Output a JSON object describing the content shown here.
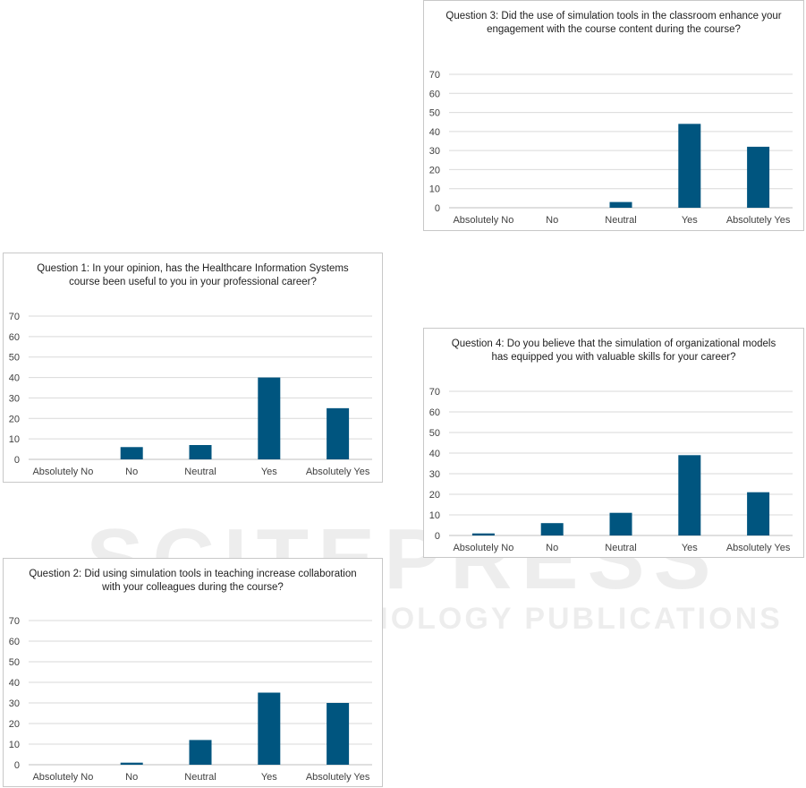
{
  "watermark": {
    "line1": "SCITEPRESS",
    "line2": "SCIENCE AND TECHNOLOGY PUBLICATIONS"
  },
  "colors": {
    "bar": "#00557f",
    "grid": "#d9d9d9",
    "axis": "#bfbfbf",
    "text": "#404040"
  },
  "chart_data": [
    {
      "type": "bar",
      "title": "Question 1: In your opinion, has the Healthcare Information Systems course been useful to you in your professional career?",
      "categories": [
        "Absolutely No",
        "No",
        "Neutral",
        "Yes",
        "Absolutely Yes"
      ],
      "values": [
        0,
        6,
        7,
        40,
        25
      ],
      "xlabel": "",
      "ylabel": "",
      "ylim": [
        0,
        70
      ],
      "yticks": [
        0,
        10,
        20,
        30,
        40,
        50,
        60,
        70
      ],
      "grid": true
    },
    {
      "type": "bar",
      "title": "Question 2: Did using simulation tools in teaching increase collaboration with your colleagues during the course?",
      "categories": [
        "Absolutely No",
        "No",
        "Neutral",
        "Yes",
        "Absolutely Yes"
      ],
      "values": [
        0,
        1,
        12,
        35,
        30
      ],
      "xlabel": "",
      "ylabel": "",
      "ylim": [
        0,
        70
      ],
      "yticks": [
        0,
        10,
        20,
        30,
        40,
        50,
        60,
        70
      ],
      "grid": true
    },
    {
      "type": "bar",
      "title": "Question 3: Did the use of simulation tools in the classroom enhance your engagement with the course content during the course?",
      "categories": [
        "Absolutely No",
        "No",
        "Neutral",
        "Yes",
        "Absolutely Yes"
      ],
      "values": [
        0,
        0,
        3,
        44,
        32
      ],
      "xlabel": "",
      "ylabel": "",
      "ylim": [
        0,
        70
      ],
      "yticks": [
        0,
        10,
        20,
        30,
        40,
        50,
        60,
        70
      ],
      "grid": true
    },
    {
      "type": "bar",
      "title": "Question 4: Do you believe that the simulation of organizational models has equipped you with valuable skills for your career?",
      "categories": [
        "Absolutely No",
        "No",
        "Neutral",
        "Yes",
        "Absolutely Yes"
      ],
      "values": [
        1,
        6,
        11,
        39,
        21
      ],
      "xlabel": "",
      "ylabel": "",
      "ylim": [
        0,
        70
      ],
      "yticks": [
        0,
        10,
        20,
        30,
        40,
        50,
        60,
        70
      ],
      "grid": true
    }
  ]
}
